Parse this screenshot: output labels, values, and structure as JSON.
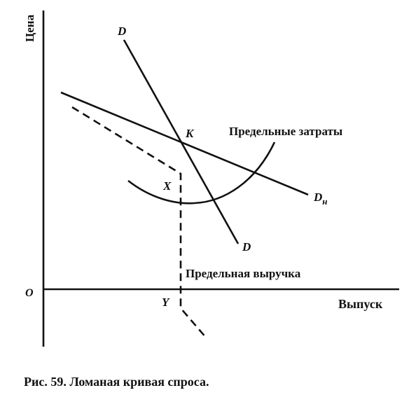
{
  "axes": {
    "y_label": "Цена",
    "origin": "O",
    "x_label": "Выпуск"
  },
  "curves": {
    "demand_steep": {
      "top_label": "D",
      "bottom_label": "D"
    },
    "demand_flat": {
      "label": "D",
      "subscript": "н"
    },
    "marginal_cost": {
      "label": "Предельные затраты"
    },
    "marginal_revenue": {
      "label": "Предельная выручка"
    }
  },
  "points": {
    "kink": "K",
    "gap_top": "X",
    "output": "Y"
  },
  "caption": "Рис. 59. Ломаная кривая спроса."
}
